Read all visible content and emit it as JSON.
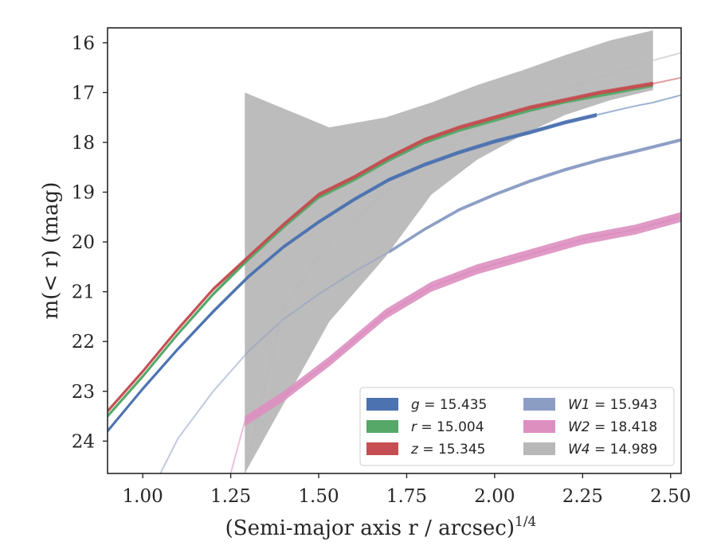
{
  "chart_data": {
    "type": "line",
    "xlabel": "(Semi-major axis r / arcsec)",
    "xlabel_sup": "1/4",
    "ylabel": "m(< r) (mag)",
    "xlim": [
      0.9,
      2.53
    ],
    "ylim": [
      24.65,
      15.7
    ],
    "y_inverted": true,
    "grid": false,
    "legend_position": "lower-right",
    "x_ticks": [
      1.0,
      1.25,
      1.5,
      1.75,
      2.0,
      2.25,
      2.5
    ],
    "x_tick_labels": [
      "1.00",
      "1.25",
      "1.50",
      "1.75",
      "2.00",
      "2.25",
      "2.50"
    ],
    "y_ticks": [
      16,
      17,
      18,
      19,
      20,
      21,
      22,
      23,
      24
    ],
    "y_tick_labels": [
      "16",
      "17",
      "18",
      "19",
      "20",
      "21",
      "22",
      "23",
      "24"
    ],
    "series": [
      {
        "name": "g = 15.435",
        "label_var": "g",
        "label_val": "15.435",
        "color": "#4c72b0",
        "band_width": 0.08,
        "x": [
          0.9,
          1.0,
          1.1,
          1.2,
          1.3,
          1.4,
          1.5,
          1.6,
          1.7,
          1.8,
          1.9,
          2.0,
          2.1,
          2.2,
          2.29
        ],
        "y": [
          23.8,
          22.95,
          22.15,
          21.4,
          20.7,
          20.1,
          19.6,
          19.15,
          18.75,
          18.45,
          18.2,
          17.98,
          17.8,
          17.6,
          17.45
        ],
        "ext_x": [
          2.29,
          2.35,
          2.4,
          2.45,
          2.53
        ],
        "ext_y": [
          17.45,
          17.35,
          17.27,
          17.2,
          17.05
        ]
      },
      {
        "name": "r = 15.004",
        "label_var": "r",
        "label_val": "15.004",
        "color": "#55a868",
        "band_width": 0.08,
        "x": [
          0.9,
          1.0,
          1.1,
          1.2,
          1.3,
          1.4,
          1.5,
          1.6,
          1.7,
          1.8,
          1.9,
          2.0,
          2.1,
          2.2,
          2.3,
          2.45
        ],
        "y": [
          23.5,
          22.7,
          21.85,
          21.05,
          20.35,
          19.7,
          19.1,
          18.75,
          18.35,
          18.0,
          17.75,
          17.55,
          17.35,
          17.18,
          17.05,
          16.85
        ]
      },
      {
        "name": "z = 15.345",
        "label_var": "z",
        "label_val": "15.345",
        "color": "#c44e52",
        "band_width": 0.08,
        "x": [
          0.9,
          1.0,
          1.1,
          1.2,
          1.3,
          1.4,
          1.5,
          1.6,
          1.7,
          1.8,
          1.9,
          2.0,
          2.1,
          2.2,
          2.3,
          2.45
        ],
        "y": [
          23.4,
          22.6,
          21.75,
          20.95,
          20.3,
          19.65,
          19.05,
          18.7,
          18.3,
          17.95,
          17.7,
          17.5,
          17.3,
          17.15,
          17.0,
          16.82
        ],
        "ext_x": [
          2.45,
          2.53
        ],
        "ext_y": [
          16.82,
          16.7
        ]
      },
      {
        "name": "W1 = 15.943",
        "label_var": "W1",
        "label_val": "15.943",
        "color": "#8c9dc4",
        "band_width": 0.07,
        "x": [
          1.7,
          1.8,
          1.9,
          2.0,
          2.1,
          2.2,
          2.3,
          2.4,
          2.53
        ],
        "y": [
          20.2,
          19.75,
          19.35,
          19.05,
          18.78,
          18.55,
          18.35,
          18.18,
          17.95
        ],
        "ext_x": [
          1.05,
          1.1,
          1.2,
          1.3,
          1.4,
          1.5,
          1.6,
          1.7
        ],
        "ext_y": [
          24.65,
          23.95,
          23.0,
          22.2,
          21.55,
          21.05,
          20.6,
          20.2
        ]
      },
      {
        "name": "W2 = 18.418",
        "label_var": "W2",
        "label_val": "18.418",
        "color": "#dd8fc0",
        "band_width": 0.2,
        "x": [
          1.29,
          1.4,
          1.53,
          1.69,
          1.82,
          1.95,
          2.1,
          2.25,
          2.4,
          2.53
        ],
        "y": [
          23.6,
          23.1,
          22.4,
          21.45,
          20.9,
          20.55,
          20.25,
          19.95,
          19.75,
          19.5
        ],
        "ext_x": [
          1.25,
          1.29
        ],
        "ext_y": [
          24.65,
          23.6
        ]
      },
      {
        "name": "W4 = 14.989",
        "label_var": "W4",
        "label_val": "14.989",
        "color": "#b8b8b8",
        "band_x": [
          1.29,
          1.53,
          1.69,
          1.82,
          1.95,
          2.08,
          2.2,
          2.33,
          2.45
        ],
        "band_upper": [
          17.0,
          17.7,
          17.5,
          17.2,
          16.85,
          16.55,
          16.25,
          15.95,
          15.75
        ],
        "band_lower": [
          24.65,
          21.6,
          20.3,
          19.05,
          18.35,
          17.85,
          17.45,
          17.15,
          16.95
        ],
        "lower_clip_x": 1.35,
        "ext_x": [
          1.29,
          1.4,
          1.53,
          1.69,
          1.82,
          1.95,
          2.1,
          2.25,
          2.4,
          2.53
        ],
        "ext_y": [
          24.65,
          21.3,
          20.0,
          19.0,
          18.3,
          17.7,
          17.2,
          16.8,
          16.45,
          16.2
        ]
      }
    ]
  }
}
